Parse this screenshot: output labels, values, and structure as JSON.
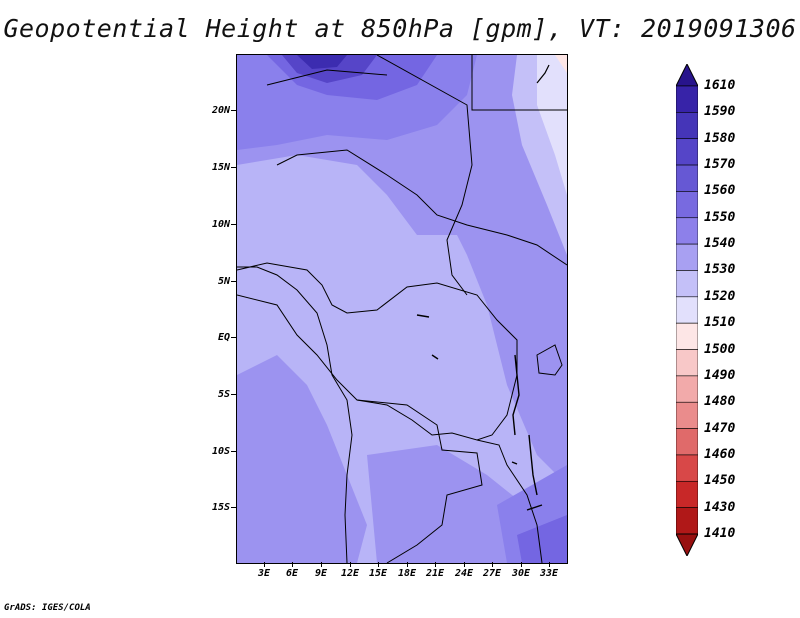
{
  "title": "Geopotential Height at 850hPa [gpm], VT: 2019091306",
  "credit": "GrADS: IGES/COLA",
  "map": {
    "region": "Central Africa",
    "lat_labels": [
      "20N",
      "15N",
      "10N",
      "5N",
      "EQ",
      "5S",
      "10S",
      "15S"
    ],
    "lon_labels": [
      "3E",
      "6E",
      "9E",
      "12E",
      "15E",
      "18E",
      "21E",
      "24E",
      "27E",
      "30E",
      "33E"
    ]
  },
  "colorbar": {
    "levels": [
      "1610",
      "1590",
      "1580",
      "1570",
      "1560",
      "1550",
      "1540",
      "1530",
      "1520",
      "1510",
      "1500",
      "1490",
      "1480",
      "1470",
      "1460",
      "1450",
      "1430",
      "1410"
    ],
    "colors": [
      "#28148c",
      "#3723a8",
      "#4535b8",
      "#5545c8",
      "#6658d4",
      "#786ae0",
      "#8d80ea",
      "#a8a0f2",
      "#c4c0f8",
      "#e2e0fc",
      "#fde6e6",
      "#f8c8c8",
      "#f2aaaa",
      "#ea8c8c",
      "#e06a6a",
      "#d84848",
      "#c82828",
      "#b01818",
      "#981010"
    ]
  }
}
